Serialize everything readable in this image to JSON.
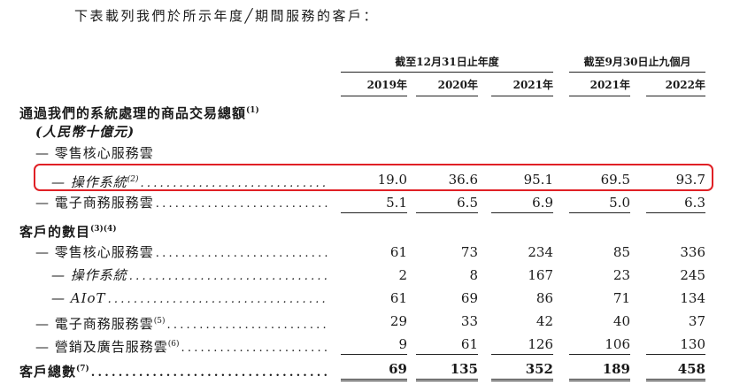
{
  "intro": "下表載列我們於所示年度╱期間服務的客戶：",
  "header": {
    "groups": [
      {
        "label": "截至12月31日止年度"
      },
      {
        "label": "截至9月30日止九個月"
      }
    ],
    "years": [
      "2019年",
      "2020年",
      "2021年",
      "2021年",
      "2022年"
    ]
  },
  "rows": [
    {
      "label": "通過我們的系統處理的商品交易總額",
      "sup": "(1)",
      "bold": true,
      "values": []
    },
    {
      "label": "(人民幣十億元)",
      "bold": true,
      "italic": true,
      "values": []
    },
    {
      "label": "— 零售核心服務雲",
      "values": []
    },
    {
      "label": "— 操作系統",
      "sup": "(2)",
      "italic": true,
      "dots": true,
      "values": [
        "19.0",
        "36.6",
        "95.1",
        "69.5",
        "93.7"
      ],
      "highlight": true
    },
    {
      "label": "— 電子商務服務雲",
      "dots": true,
      "values": [
        "5.1",
        "6.5",
        "6.9",
        "5.0",
        "6.3"
      ],
      "underline": true
    },
    {
      "label": "客戶的數目",
      "sup": "(3)(4)",
      "bold": true,
      "values": []
    },
    {
      "label": "— 零售核心服務雲",
      "dots": true,
      "values": [
        "61",
        "73",
        "234",
        "85",
        "336"
      ]
    },
    {
      "label": "— 操作系統",
      "italic": true,
      "dots": true,
      "values": [
        "2",
        "8",
        "167",
        "23",
        "245"
      ]
    },
    {
      "label": "— AIoT",
      "italic": true,
      "dots": true,
      "values": [
        "61",
        "69",
        "86",
        "71",
        "134"
      ]
    },
    {
      "label": "— 電子商務服務雲",
      "sup": "(5)",
      "dots": true,
      "values": [
        "29",
        "33",
        "42",
        "40",
        "37"
      ]
    },
    {
      "label": "— 營銷及廣告服務雲",
      "sup": "(6)",
      "dots": true,
      "values": [
        "9",
        "61",
        "126",
        "106",
        "130"
      ],
      "underline": true
    },
    {
      "label": "客戶總數",
      "sup": "(7)",
      "bold": true,
      "dots": true,
      "values": [
        "69",
        "135",
        "352",
        "189",
        "458"
      ],
      "bold_values": true,
      "double": true
    }
  ],
  "colors": {
    "highlight": "#e02025"
  }
}
